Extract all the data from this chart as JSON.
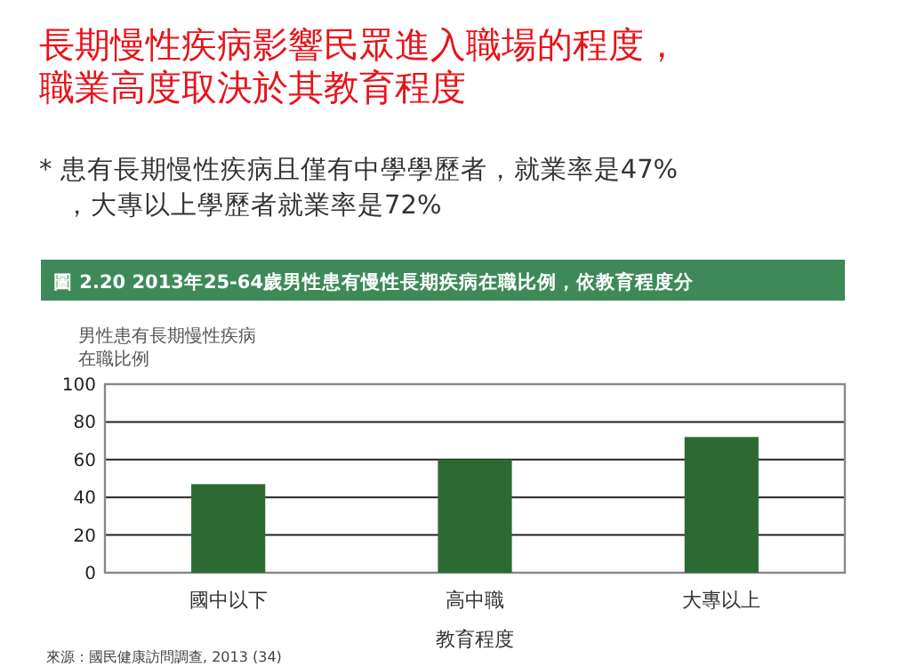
{
  "chart_data": {
    "type": "bar",
    "title": "長期慢性疾病影響民眾進入職場的程度，職業高度取決於其教育程度",
    "subtitle": "圖 2.20  2013年25-64歲男性患有慢性長期疾病在職比例，依教育程度分",
    "ylabel": "男性患有長期慢性疾病在職比例",
    "xlabel": "教育程度",
    "categories": [
      "國中以下",
      "高中職",
      "大專以上"
    ],
    "values": [
      47,
      60,
      72
    ],
    "color": "#2d6a33",
    "ylim": [
      0,
      100
    ],
    "yticks": [
      0,
      20,
      40,
      60,
      80,
      100
    ],
    "grid": "y",
    "annotations": [
      "* 患有長期慢性疾病且僅有中學學歷者，就業率是47%，大專以上學歷者就業率是72%",
      "來源：國民健康訪問調查, 2013 (34)"
    ]
  }
}
